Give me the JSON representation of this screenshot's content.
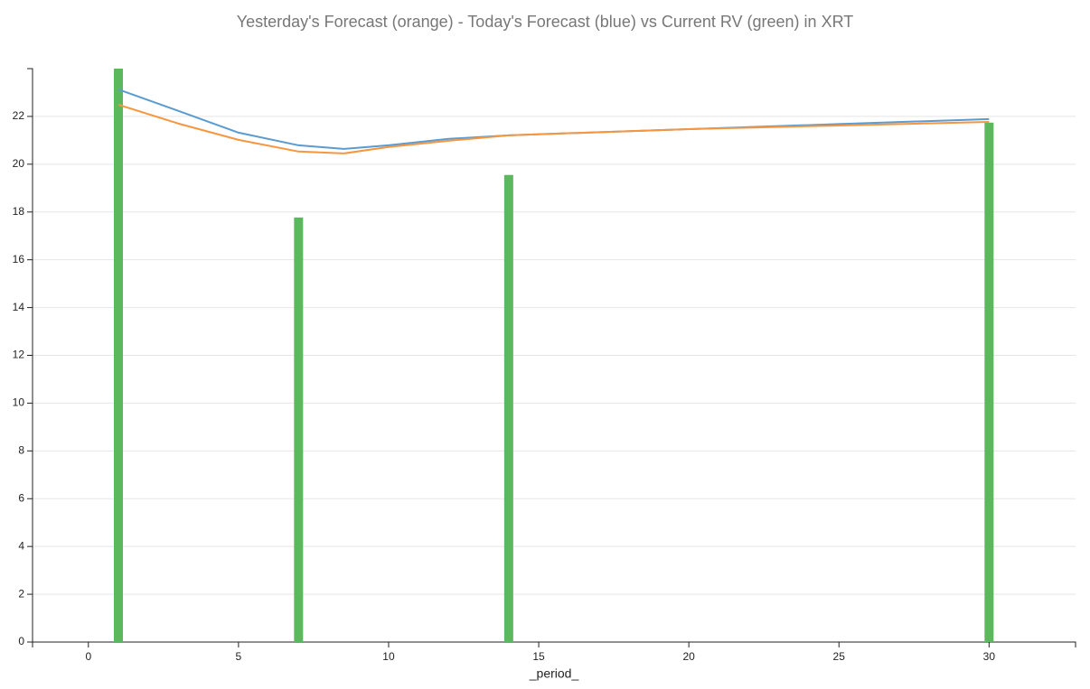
{
  "chart_data": {
    "type": "combo",
    "title": "Yesterday's Forecast (orange) - Today's Forecast (blue) vs Current RV (green) in XRT",
    "x_label": "_period_",
    "xlim": [
      -1.86,
      32.88
    ],
    "xticks": [
      0,
      5,
      10,
      15,
      20,
      25,
      30
    ],
    "ylim": [
      0,
      24
    ],
    "yticks": [
      0,
      2,
      4,
      6,
      8,
      10,
      12,
      14,
      16,
      18,
      20,
      22
    ],
    "grid": true,
    "series": [
      {
        "type": "bar",
        "color": "#5cb85c",
        "x": [
          1,
          7,
          14,
          30
        ],
        "values": [
          24,
          17.77,
          19.55,
          21.74
        ]
      },
      {
        "type": "line",
        "color": "#5b9bcf",
        "x": [
          1,
          3,
          5,
          7,
          8.5,
          10,
          12,
          14,
          20,
          25,
          30
        ],
        "values": [
          23.13,
          22.23,
          21.32,
          20.79,
          20.64,
          20.79,
          21.06,
          21.21,
          21.47,
          21.68,
          21.89
        ]
      },
      {
        "type": "line",
        "color": "#f7963e",
        "x": [
          1,
          3,
          5,
          7,
          8.5,
          10,
          12,
          14,
          20,
          25,
          30
        ],
        "values": [
          22.49,
          21.7,
          21.02,
          20.53,
          20.45,
          20.72,
          20.98,
          21.21,
          21.47,
          21.62,
          21.77
        ]
      }
    ]
  }
}
